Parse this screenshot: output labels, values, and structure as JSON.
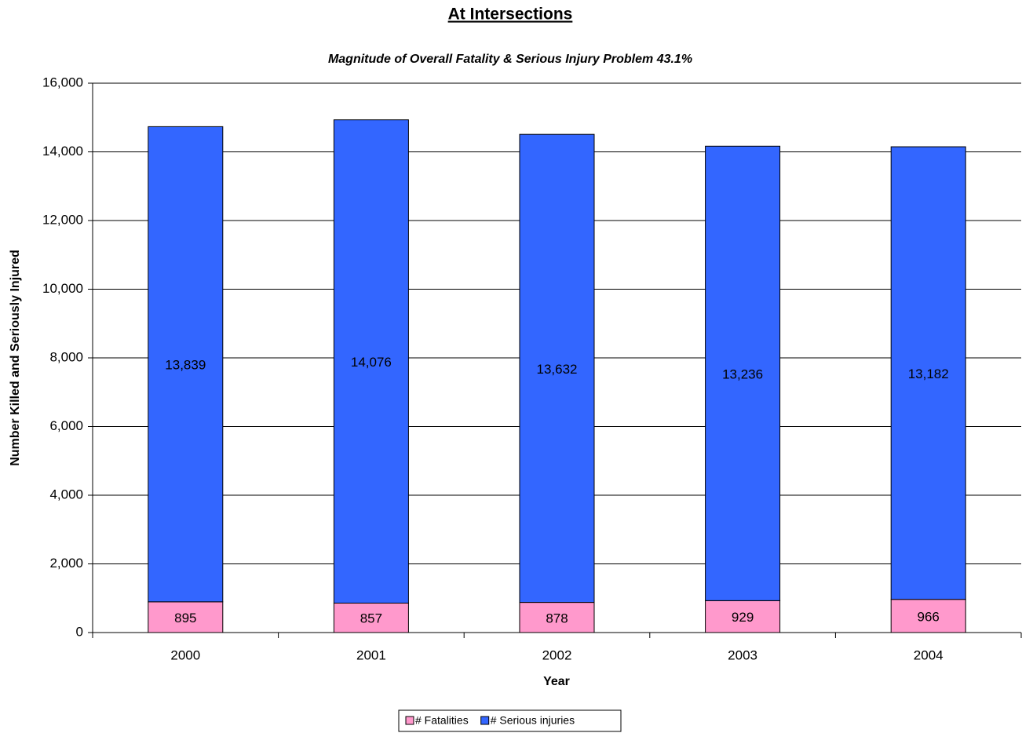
{
  "chart_data": {
    "type": "stacked_bar",
    "title": "At Intersections",
    "subtitle": "Magnitude of Overall Fatality & Serious Injury Problem 43.1%",
    "x_label": "Year",
    "y_label": "Number Killed and Seriously Injured",
    "categories": [
      "2000",
      "2001",
      "2002",
      "2003",
      "2004"
    ],
    "series": [
      {
        "name": "# Fatalities",
        "color": "#ff99cc",
        "values": [
          895,
          857,
          878,
          929,
          966
        ]
      },
      {
        "name": "# Serious injuries",
        "color": "#3366ff",
        "values": [
          13839,
          14076,
          13632,
          13236,
          13182
        ],
        "value_labels": [
          "13,839",
          "14,076",
          "13,632",
          "13,236",
          "13,182"
        ]
      }
    ],
    "ylim": [
      0,
      16000
    ],
    "yticks": [
      0,
      {
        "value": 2000,
        "label": "2,000"
      },
      {
        "value": 4000,
        "label": "4,000"
      },
      {
        "value": 6000,
        "label": "6,000"
      },
      {
        "value": 8000,
        "label": "8,000"
      },
      {
        "value": 10000,
        "label": "10,000"
      },
      {
        "value": 12000,
        "label": "12,000"
      },
      {
        "value": 14000,
        "label": "14,000"
      },
      {
        "value": 16000,
        "label": "16,000"
      }
    ],
    "grid": true,
    "legend": "bottom"
  }
}
